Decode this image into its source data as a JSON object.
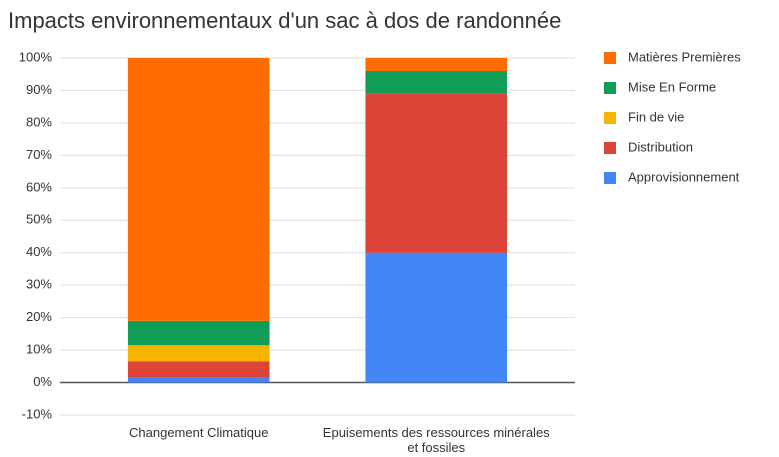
{
  "chart_data": {
    "type": "stacked_bar",
    "title": "Impacts environnementaux d'un sac à dos de randonnée",
    "categories": [
      "Changement Climatique",
      "Epuisements des ressources minérales et fossiles"
    ],
    "series": [
      {
        "name": "Approvisionnement",
        "color": "#4285f4",
        "values": [
          1.5,
          40
        ]
      },
      {
        "name": "Distribution",
        "color": "#db4437",
        "values": [
          5,
          49
        ]
      },
      {
        "name": "Fin de vie",
        "color": "#f4b400",
        "values": [
          5,
          0
        ]
      },
      {
        "name": "Mise En Forme",
        "color": "#0f9d58",
        "values": [
          7.5,
          7
        ]
      },
      {
        "name": "Matières Premières",
        "color": "#ff6d00",
        "values": [
          81,
          4
        ]
      }
    ],
    "ylim": [
      -10,
      100
    ],
    "yticks": [
      {
        "value": -10,
        "label": "-10%"
      },
      {
        "value": 0,
        "label": "0%"
      },
      {
        "value": 10,
        "label": "10%"
      },
      {
        "value": 20,
        "label": "20%"
      },
      {
        "value": 30,
        "label": "30%"
      },
      {
        "value": 40,
        "label": "40%"
      },
      {
        "value": 50,
        "label": "50%"
      },
      {
        "value": 60,
        "label": "60%"
      },
      {
        "value": 70,
        "label": "70%"
      },
      {
        "value": 80,
        "label": "80%"
      },
      {
        "value": 90,
        "label": "90%"
      },
      {
        "value": 100,
        "label": "100%"
      }
    ],
    "grid": true,
    "legend": "right"
  }
}
